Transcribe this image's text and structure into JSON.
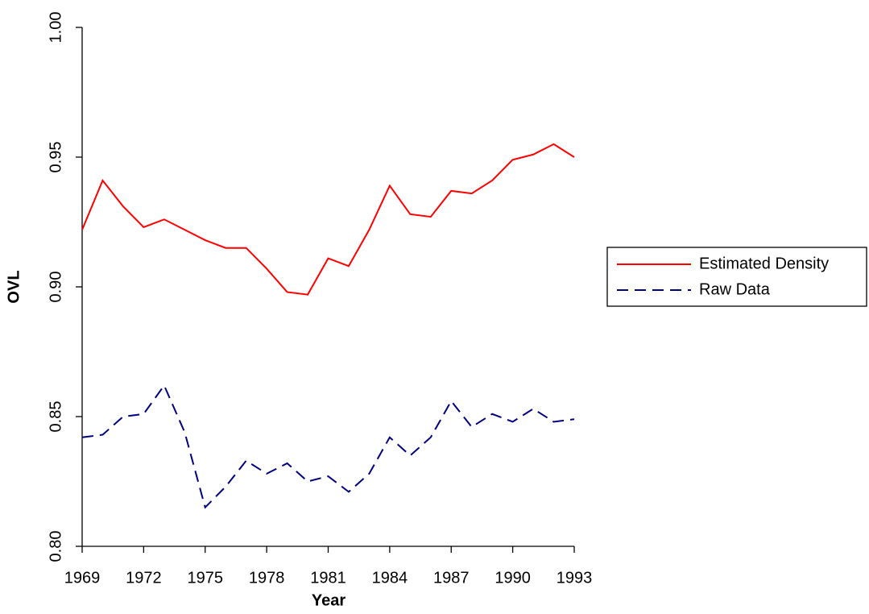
{
  "chart_data": {
    "type": "line",
    "x_label": "Year",
    "y_label": "OVL",
    "x": [
      1969,
      1970,
      1971,
      1972,
      1973,
      1974,
      1975,
      1976,
      1977,
      1978,
      1979,
      1980,
      1981,
      1982,
      1983,
      1984,
      1985,
      1986,
      1987,
      1988,
      1989,
      1990,
      1991,
      1992,
      1993
    ],
    "series": [
      {
        "name": "Estimated Density",
        "color": "#ff0000",
        "dash": "solid",
        "values": [
          0.922,
          0.941,
          0.931,
          0.923,
          0.926,
          0.922,
          0.918,
          0.915,
          0.915,
          0.907,
          0.898,
          0.897,
          0.911,
          0.908,
          0.922,
          0.939,
          0.928,
          0.927,
          0.937,
          0.936,
          0.941,
          0.949,
          0.951,
          0.955,
          0.95
        ]
      },
      {
        "name": "Raw Data",
        "color": "#000080",
        "dash": "dashed",
        "values": [
          0.842,
          0.843,
          0.85,
          0.851,
          0.862,
          0.844,
          0.815,
          0.823,
          0.833,
          0.828,
          0.832,
          0.825,
          0.827,
          0.821,
          0.828,
          0.842,
          0.835,
          0.842,
          0.856,
          0.846,
          0.851,
          0.848,
          0.853,
          0.848,
          0.849
        ]
      }
    ],
    "xlim": [
      1969,
      1993
    ],
    "xticks": [
      1969,
      1972,
      1975,
      1978,
      1981,
      1984,
      1987,
      1990,
      1993
    ],
    "ylim": [
      0.8,
      1.0
    ],
    "yticks": [
      {
        "value": 0.8,
        "label": "0.80"
      },
      {
        "value": 0.85,
        "label": "0.85"
      },
      {
        "value": 0.9,
        "label": "0.90"
      },
      {
        "value": 0.95,
        "label": "0.95"
      },
      {
        "value": 1.0,
        "label": "1.00"
      }
    ],
    "grid": false,
    "legend": "right"
  }
}
